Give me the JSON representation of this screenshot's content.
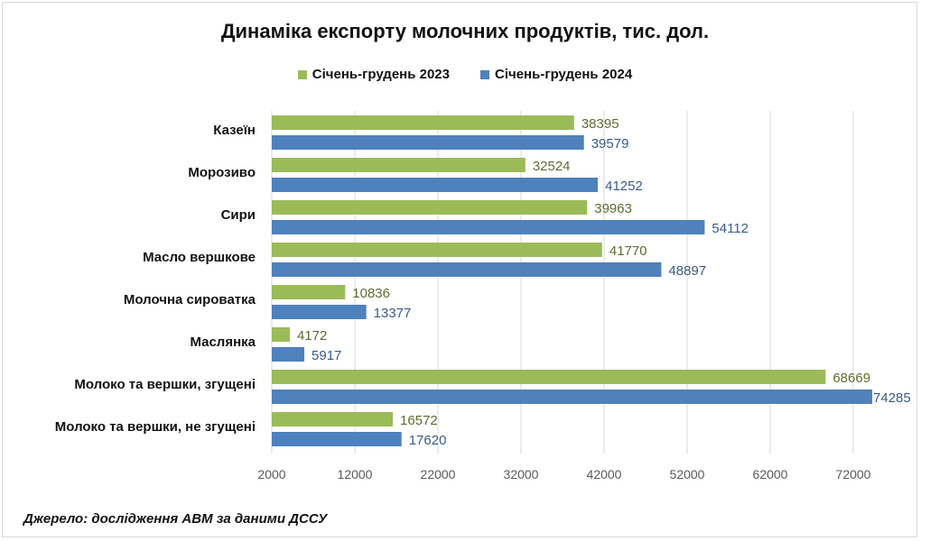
{
  "chart_data": {
    "type": "bar",
    "orientation": "horizontal",
    "title": "Динаміка експорту молочних продуктів, тис. дол.",
    "categories": [
      "Казеїн",
      "Морозиво",
      "Сири",
      "Масло вершкове",
      "Молочна сироватка",
      "Маслянка",
      "Молоко та вершки, згущені",
      "Молоко та вершки, не згущені"
    ],
    "series": [
      {
        "name": "Січень-грудень 2023",
        "color": "#9bbb59",
        "label_color": "#5f6b2f",
        "values": [
          38395,
          32524,
          39963,
          41770,
          10836,
          4172,
          68669,
          16572
        ]
      },
      {
        "name": "Січень-грудень 2024",
        "color": "#4f81bd",
        "label_color": "#3a5a8a",
        "values": [
          39579,
          41252,
          54112,
          48897,
          13377,
          5917,
          74285,
          17620
        ]
      }
    ],
    "xticks": [
      "2000",
      "12000",
      "22000",
      "32000",
      "42000",
      "52000",
      "62000",
      "72000"
    ],
    "xlim": [
      2000,
      72000
    ],
    "grid": true,
    "legend": "top"
  },
  "source": "Джерело: дослідження АВМ за даними ДССУ"
}
